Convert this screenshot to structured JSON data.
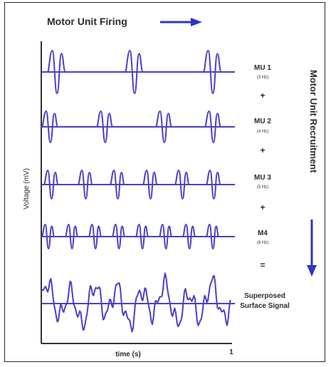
{
  "header": {
    "title": "Motor Unit Firing"
  },
  "side_label": "Motor Unit Recruitment",
  "axes": {
    "ylabel": "Voltage (mV)",
    "xlabel": "time (s)",
    "x_end_tick": "1"
  },
  "units": [
    {
      "name": "MU 1",
      "rate": "(3 Hz)",
      "operator": "+"
    },
    {
      "name": "MU 2",
      "rate": "(4 Hz)",
      "operator": "+"
    },
    {
      "name": "MU 3",
      "rate": "(5 Hz)",
      "operator": "+"
    },
    {
      "name": "M4",
      "rate": "(8 Hz)",
      "operator": "="
    }
  ],
  "superposed": {
    "line1": "Superposed",
    "line2": "Surface Signal"
  },
  "colors": {
    "wave": "#4a3fc8",
    "arrow": "#2e35c4",
    "text": "#2b2b2b",
    "axis": "#333333"
  }
}
